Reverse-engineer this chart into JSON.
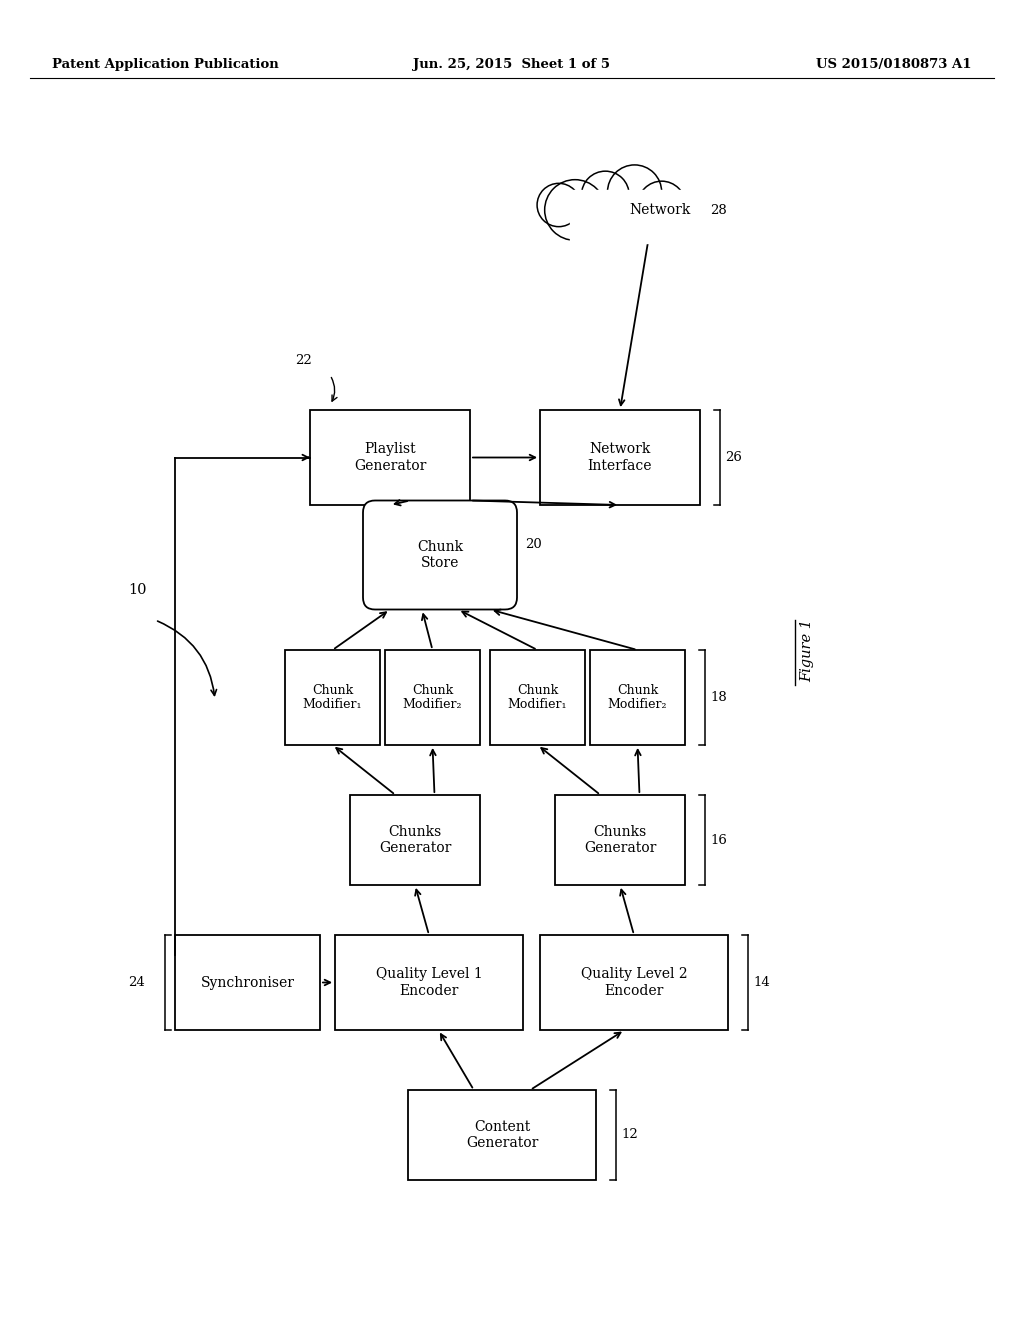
{
  "header_left": "Patent Application Publication",
  "header_mid": "Jun. 25, 2015  Sheet 1 of 5",
  "header_right": "US 2015/0180873 A1",
  "bg_color": "#ffffff",
  "box_edge": "#000000",
  "box_fill": "#ffffff"
}
